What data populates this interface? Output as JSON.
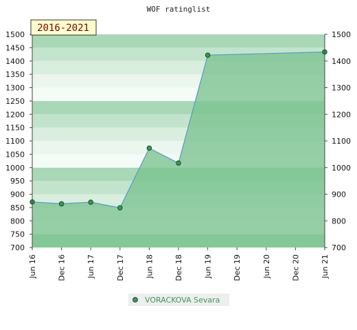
{
  "chart_data": {
    "type": "area",
    "title": "WOF ratinglist",
    "period_label": "2016-2021",
    "categories": [
      "Jun 16",
      "Dec 16",
      "Jun 17",
      "Dec 17",
      "Jun 18",
      "Dec 18",
      "Jun 19",
      "Dec 19",
      "Jun 20",
      "Dec 20",
      "Jun 21"
    ],
    "series": [
      {
        "name": "VORACKOVA Sevara",
        "points": [
          {
            "x": "Jun 16",
            "y": 871
          },
          {
            "x": "Dec 16",
            "y": 864
          },
          {
            "x": "Jun 17",
            "y": 870
          },
          {
            "x": "Dec 17",
            "y": 849
          },
          {
            "x": "Jun 18",
            "y": 1073
          },
          {
            "x": "Dec 18",
            "y": 1017
          },
          {
            "x": "Jun 19",
            "y": 1422
          },
          {
            "x": "Jun 21",
            "y": 1434
          }
        ]
      }
    ],
    "ylim": [
      700,
      1500
    ],
    "left_ticks": [
      700,
      750,
      800,
      850,
      900,
      950,
      1000,
      1050,
      1100,
      1150,
      1200,
      1250,
      1300,
      1350,
      1400,
      1450,
      1500
    ],
    "right_ticks": [
      700,
      800,
      900,
      1000,
      1100,
      1200,
      1300,
      1400,
      1500
    ],
    "colors": {
      "line": "#5599cc",
      "marker": "#2e9e4e",
      "fill": "#7bc38f",
      "badge_bg": "#ffffcc"
    }
  }
}
